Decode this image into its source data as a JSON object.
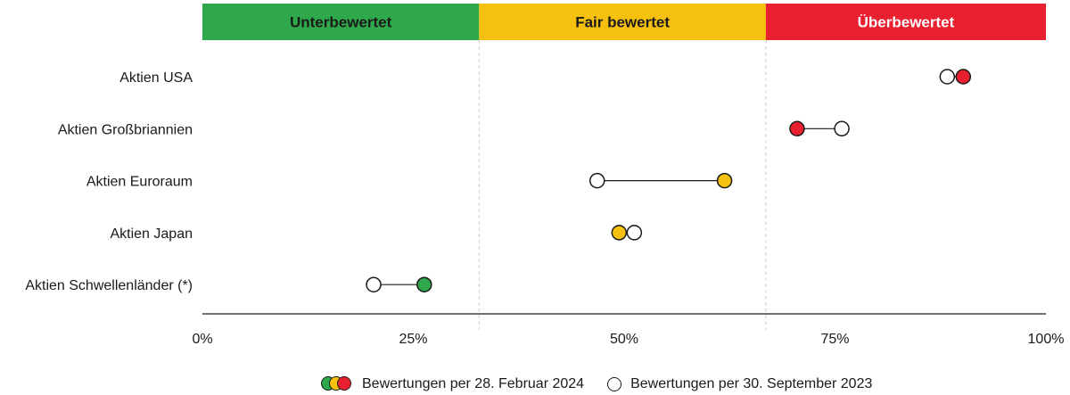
{
  "chart_data": {
    "type": "dumbbell",
    "xlim": [
      0,
      100
    ],
    "x_ticks": [
      {
        "value": 0,
        "label": "0%"
      },
      {
        "value": 25,
        "label": "25%"
      },
      {
        "value": 50,
        "label": "50%"
      },
      {
        "value": 75,
        "label": "75%"
      },
      {
        "value": 100,
        "label": "100%"
      }
    ],
    "zones": [
      {
        "name": "Unterbewertet",
        "from": 0,
        "to": 32.8,
        "color": "#2ea84b",
        "text_color": "#1a1a1a"
      },
      {
        "name": "Fair bewertet",
        "from": 32.8,
        "to": 66.8,
        "color": "#f6c10e",
        "text_color": "#1a1a1a"
      },
      {
        "name": "Überbewertet",
        "from": 66.8,
        "to": 100,
        "color": "#e8202f",
        "text_color": "#ffffff"
      }
    ],
    "categories": [
      "Aktien USA",
      "Aktien Großbriannien",
      "Aktien Euroraum",
      "Aktien Japan",
      "Aktien Schwellenländer (*)"
    ],
    "series": [
      {
        "name": "Bewertungen per 28. Februar 2024",
        "values": [
          90.2,
          70.5,
          61.9,
          49.4,
          26.3
        ]
      },
      {
        "name": "Bewertungen per 30. September 2023",
        "values": [
          88.3,
          75.8,
          46.8,
          51.2,
          20.3
        ]
      }
    ],
    "current_point_colors": [
      "#e8202f",
      "#e8202f",
      "#f6c10e",
      "#f6c10e",
      "#2ea84b"
    ],
    "grid": false
  },
  "legend": {
    "current_label": "Bewertungen per 28. Februar 2024",
    "previous_label": "Bewertungen per 30. September 2023",
    "swatch_colors": [
      "#2ea84b",
      "#f6c10e",
      "#e8202f"
    ]
  }
}
